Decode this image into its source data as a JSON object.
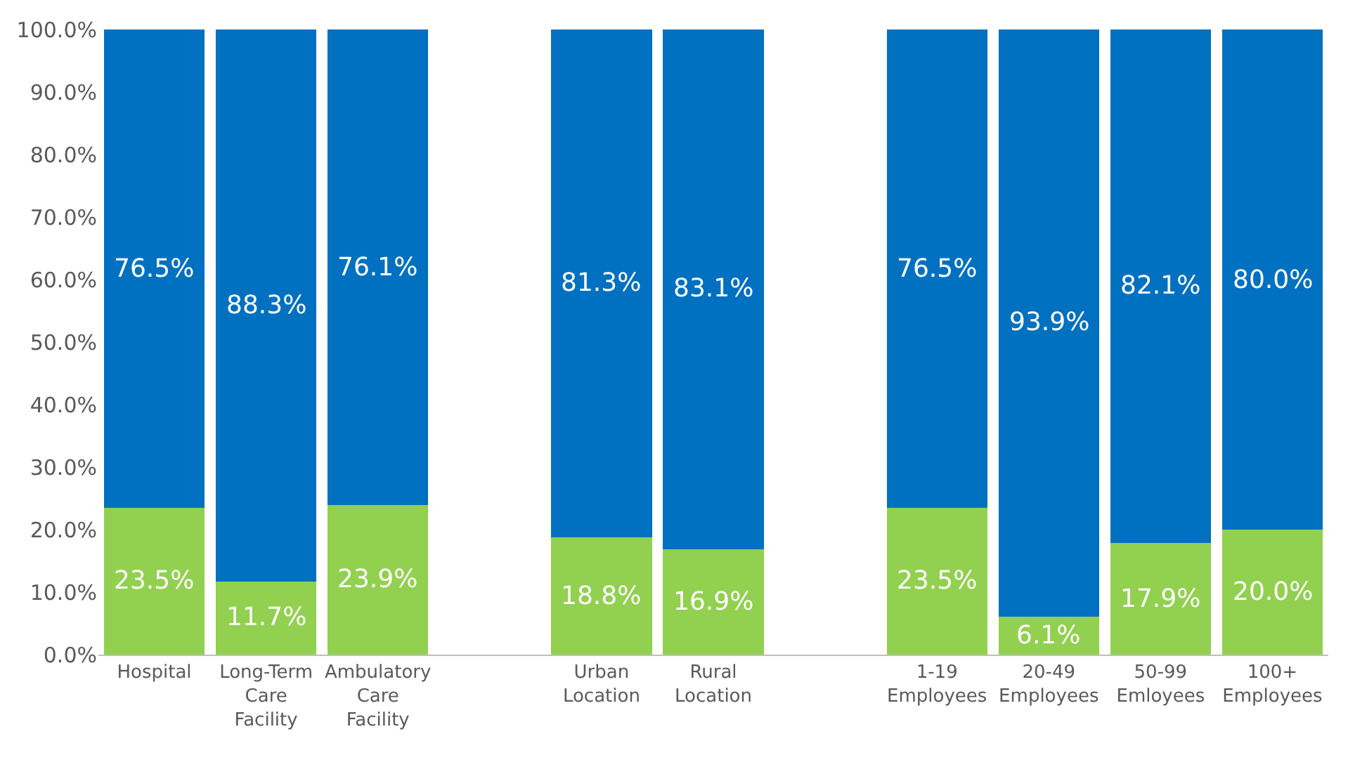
{
  "chart_data": {
    "type": "bar",
    "stacked": true,
    "categories": [
      "Hospital",
      "Long-Term\nCare\nFacility",
      "Ambulatory\nCare\nFacility",
      null,
      "Urban\nLocation",
      "Rural\nLocation",
      null,
      "1-19\nEmployees",
      "20-49\nEmployees",
      "50-99\nEmloyees",
      "100+\nEmployees"
    ],
    "series": [
      {
        "color": "#92d050",
        "values": [
          23.5,
          11.7,
          23.9,
          null,
          18.8,
          16.9,
          null,
          23.5,
          6.1,
          17.9,
          20.0
        ],
        "value_labels": [
          "23.5%",
          "11.7%",
          "23.9%",
          null,
          "18.8%",
          "16.9%",
          null,
          "23.5%",
          "6.1%",
          "17.9%",
          "20.0%"
        ]
      },
      {
        "color": "#0070c0",
        "values": [
          76.5,
          88.3,
          76.1,
          null,
          81.3,
          83.1,
          null,
          76.5,
          93.9,
          82.1,
          80.0
        ],
        "value_labels": [
          "76.5%",
          "88.3%",
          "76.1%",
          null,
          "81.3%",
          "83.1%",
          null,
          "76.5%",
          "93.9%",
          "82.1%",
          "80.0%"
        ]
      }
    ],
    "ylim": [
      0,
      100
    ],
    "yticks": [
      {
        "value": 0,
        "label": "0.0%"
      },
      {
        "value": 10,
        "label": "10.0%"
      },
      {
        "value": 20,
        "label": "20.0%"
      },
      {
        "value": 30,
        "label": "30.0%"
      },
      {
        "value": 40,
        "label": "40.0%"
      },
      {
        "value": 50,
        "label": "50.0%"
      },
      {
        "value": 60,
        "label": "60.0%"
      },
      {
        "value": 70,
        "label": "70.0%"
      },
      {
        "value": 80,
        "label": "80.0%"
      },
      {
        "value": 90,
        "label": "90.0%"
      },
      {
        "value": 100,
        "label": "100.0%"
      }
    ],
    "grid": false,
    "legend": false
  }
}
